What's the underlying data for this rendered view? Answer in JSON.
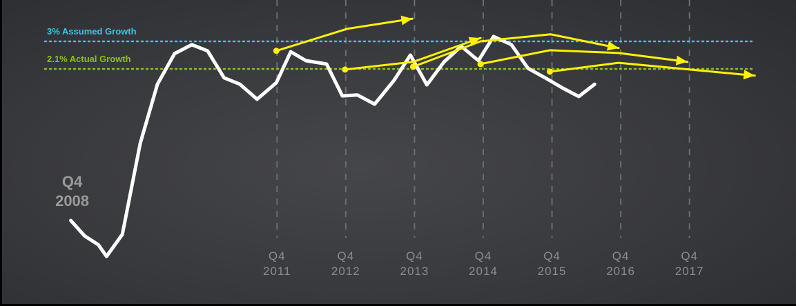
{
  "chart_data": {
    "type": "line",
    "xlim": [
      2007.75,
      2019.33
    ],
    "ylim": [
      -5.64,
      4.35
    ],
    "xticks": [
      {
        "value": 2011.75,
        "label": "Q4 2011"
      },
      {
        "value": 2012.75,
        "label": "Q4 2012"
      },
      {
        "value": 2013.75,
        "label": "Q4 2013"
      },
      {
        "value": 2014.75,
        "label": "Q4 2014"
      },
      {
        "value": 2015.75,
        "label": "Q4 2015"
      },
      {
        "value": 2016.75,
        "label": "Q4 2016"
      },
      {
        "value": 2017.75,
        "label": "Q4 2017"
      }
    ],
    "reference_lines": [
      {
        "value": 3,
        "label": "3% Assumed Growth",
        "color": "#3ec3e6"
      },
      {
        "value": 2.1,
        "label": "2.1% Actual Growth",
        "color": "#8cc21a"
      }
    ],
    "annotations": [
      {
        "text": "Q4 2008",
        "x": 2008.75,
        "y": -2.85
      }
    ],
    "series": [
      {
        "color": "#ffffff",
        "x": [
          2008.75,
          2008.95,
          2009.15,
          2009.27,
          2009.5,
          2009.76,
          2010.01,
          2010.26,
          2010.51,
          2010.74,
          2010.98,
          2011.21,
          2011.46,
          2011.74,
          2011.95,
          2012.17,
          2012.47,
          2012.7,
          2012.92,
          2013.17,
          2013.45,
          2013.69,
          2013.93,
          2014.18,
          2014.43,
          2014.68,
          2014.9,
          2015.16,
          2015.4,
          2015.65,
          2015.91,
          2016.14,
          2016.37
        ],
        "values": [
          -2.85,
          -3.35,
          -3.64,
          -4.02,
          -3.3,
          -0.33,
          1.6,
          2.6,
          2.89,
          2.69,
          1.81,
          1.6,
          1.11,
          1.65,
          2.66,
          2.37,
          2.26,
          1.22,
          1.25,
          0.95,
          1.72,
          2.55,
          1.58,
          2.33,
          2.84,
          2.37,
          3.16,
          2.89,
          2.12,
          1.81,
          1.47,
          1.2,
          1.6
        ]
      },
      {
        "color": "#fff200",
        "x": [
          2011.74,
          2012.77,
          2013.72
        ],
        "values": [
          2.69,
          3.41,
          3.74
        ]
      },
      {
        "color": "#fff200",
        "x": [
          2012.74,
          2013.73,
          2014.71
        ],
        "values": [
          2.08,
          2.33,
          3.11
        ]
      },
      {
        "color": "#fff200",
        "x": [
          2013.73,
          2014.71,
          2015.73,
          2016.72
        ],
        "values": [
          2.17,
          3.0,
          3.23,
          2.78
        ]
      },
      {
        "color": "#fff200",
        "x": [
          2014.71,
          2015.72,
          2016.72,
          2017.72
        ],
        "values": [
          2.26,
          2.71,
          2.62,
          2.33
        ]
      },
      {
        "color": "#fff200",
        "x": [
          2015.72,
          2016.72,
          2018.7
        ],
        "values": [
          2.01,
          2.3,
          1.88
        ]
      }
    ]
  }
}
